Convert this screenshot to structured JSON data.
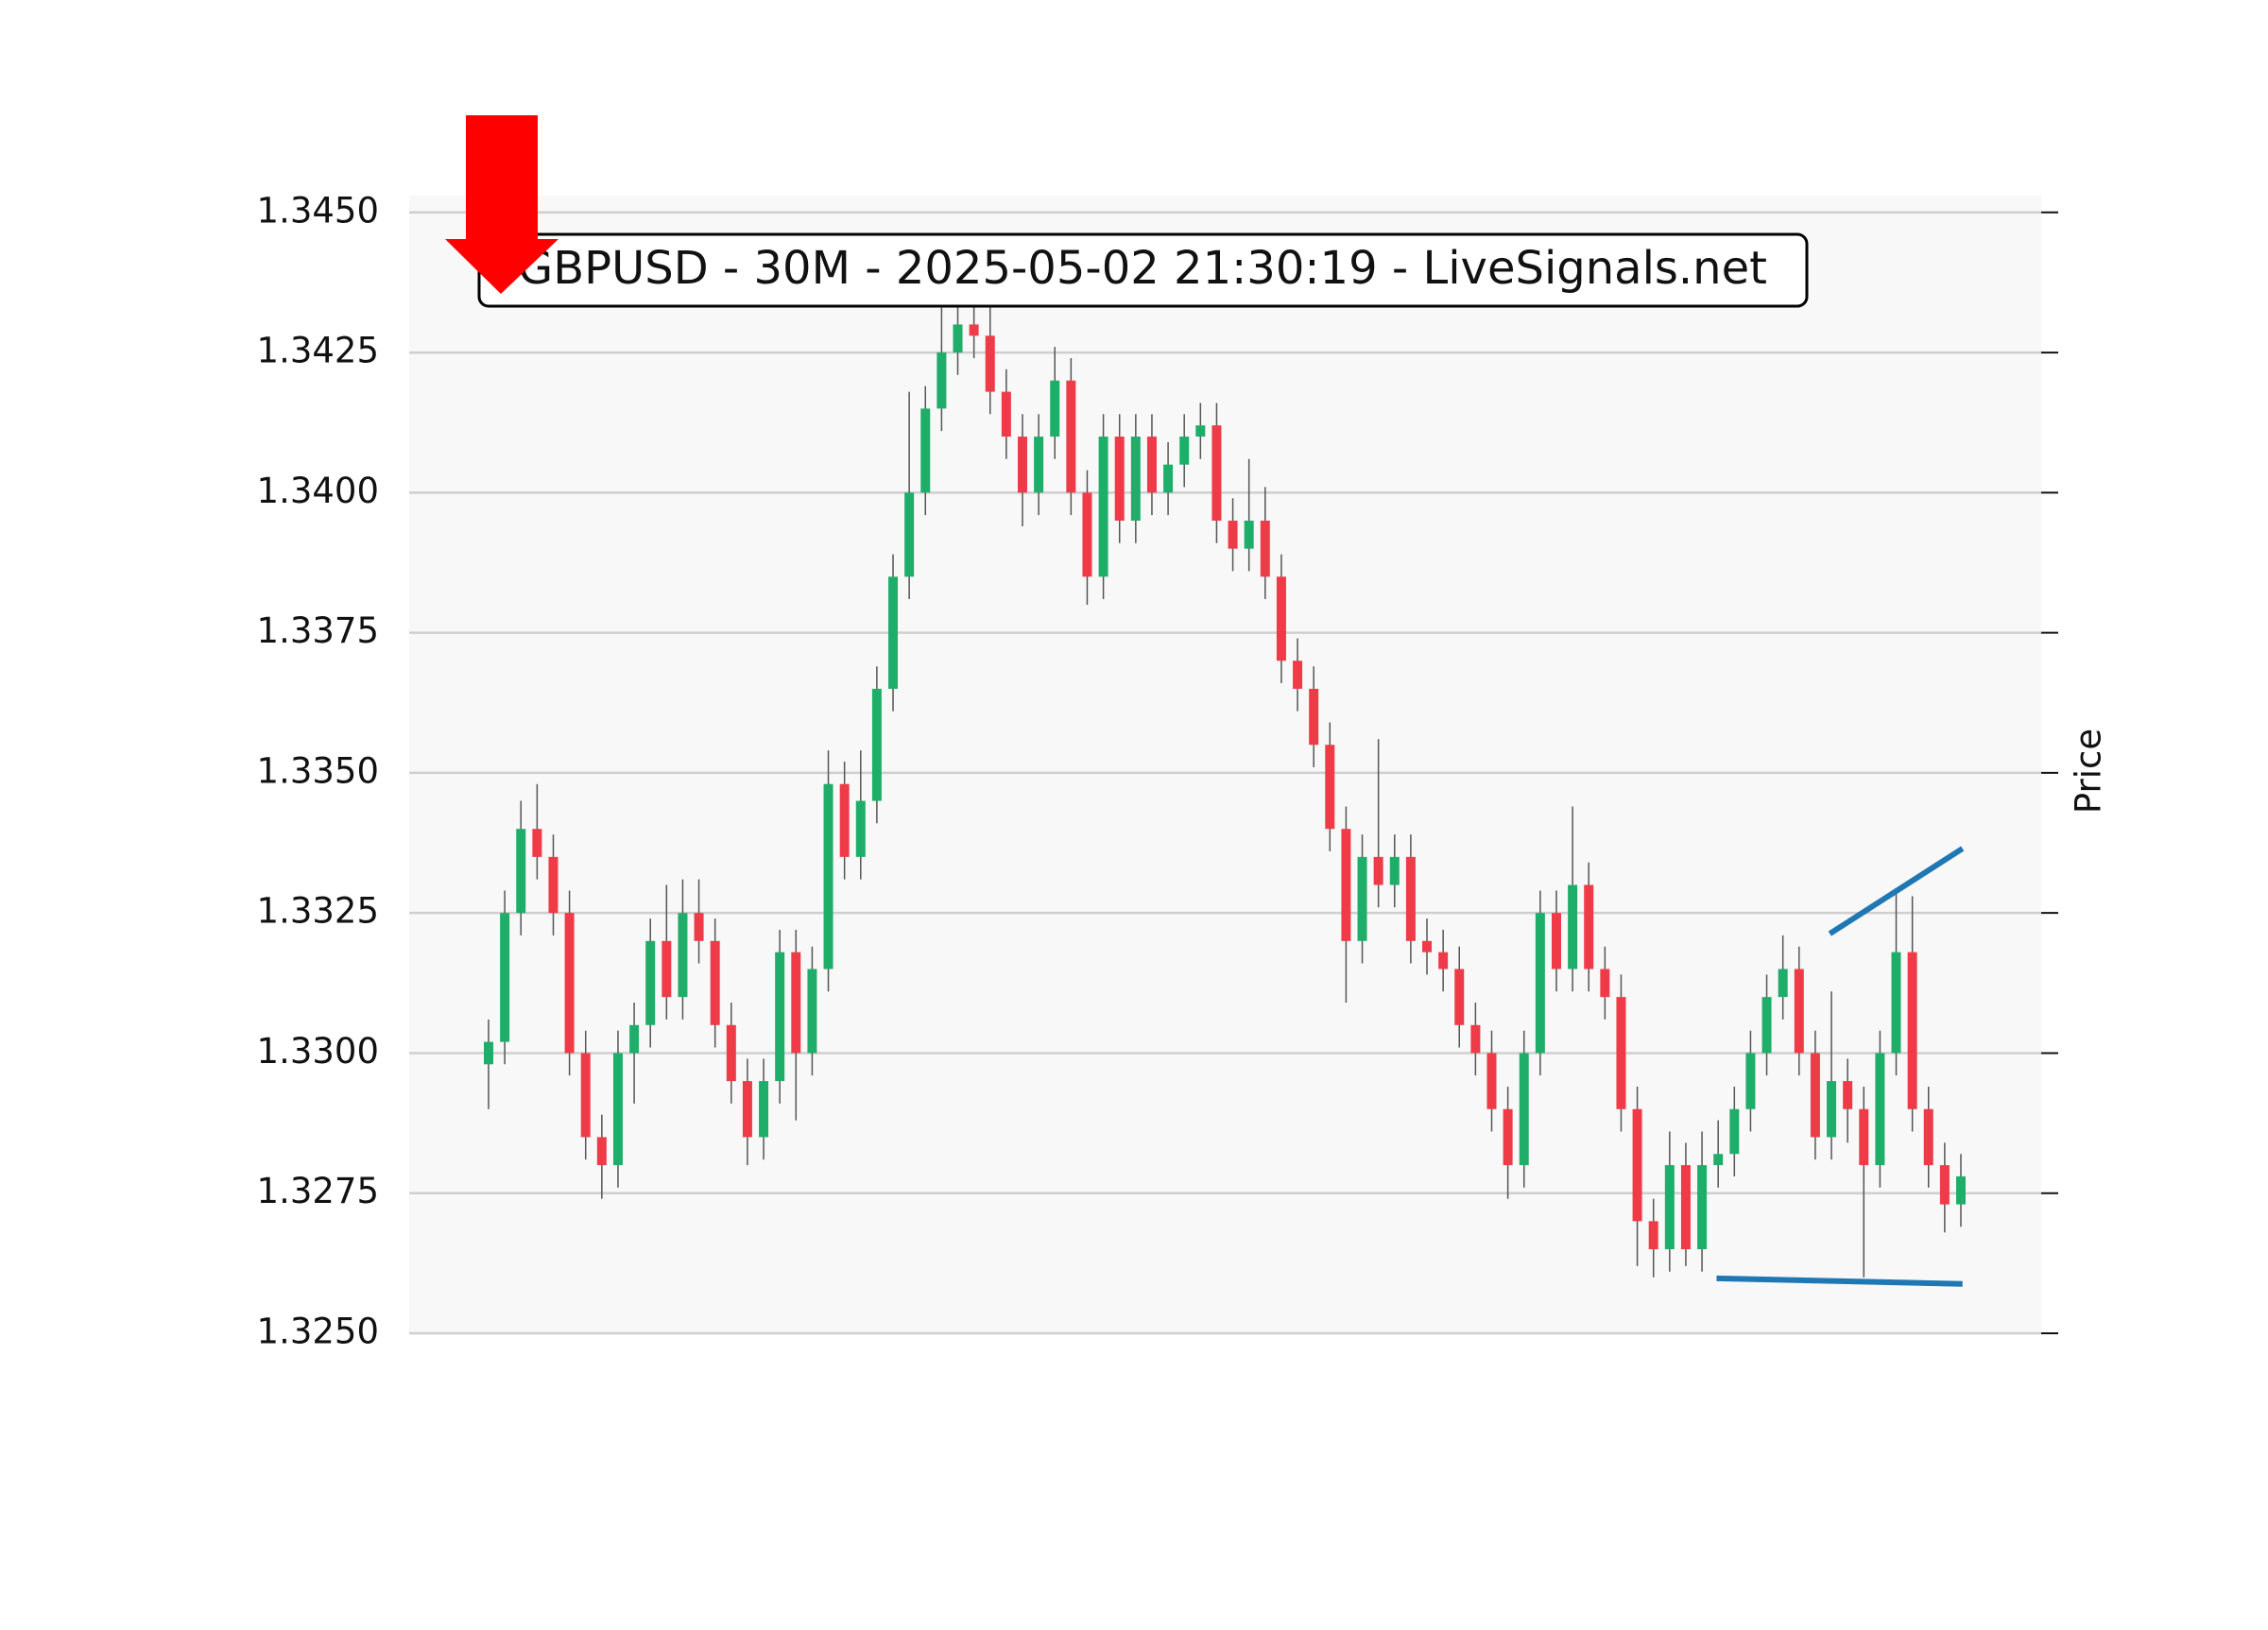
{
  "chart_data": {
    "type": "candlestick",
    "title": "GBPUSD - 30M - 2025-05-02 21:30:19 - LiveSignals.net",
    "ylabel": "Price",
    "ylim": [
      1.325,
      1.3453
    ],
    "yticks": [
      {
        "value": 1.325,
        "label": "1.3250"
      },
      {
        "value": 1.3275,
        "label": "1.3275"
      },
      {
        "value": 1.33,
        "label": "1.3300"
      },
      {
        "value": 1.3325,
        "label": "1.3325"
      },
      {
        "value": 1.335,
        "label": "1.3350"
      },
      {
        "value": 1.3375,
        "label": "1.3375"
      },
      {
        "value": 1.34,
        "label": "1.3400"
      },
      {
        "value": 1.3425,
        "label": "1.3425"
      },
      {
        "value": 1.345,
        "label": "1.3450"
      }
    ],
    "grid": true,
    "up_color": "#1fae6a",
    "down_color": "#ef3b47",
    "open": [
      1.3298,
      1.3302,
      1.3325,
      1.334,
      1.3335,
      1.3325,
      1.33,
      1.3285,
      1.328,
      1.33,
      1.3305,
      1.332,
      1.331,
      1.3325,
      1.332,
      1.3305,
      1.3295,
      1.3285,
      1.3295,
      1.3318,
      1.33,
      1.3315,
      1.3348,
      1.3335,
      1.3345,
      1.3365,
      1.3385,
      1.34,
      1.3415,
      1.3425,
      1.343,
      1.3428,
      1.3418,
      1.341,
      1.34,
      1.341,
      1.342,
      1.34,
      1.3385,
      1.341,
      1.3395,
      1.341,
      1.34,
      1.3405,
      1.341,
      1.3412,
      1.3395,
      1.339,
      1.3395,
      1.3385,
      1.337,
      1.3365,
      1.3355,
      1.334,
      1.332,
      1.3335,
      1.333,
      1.3335,
      1.332,
      1.3318,
      1.3315,
      1.3305,
      1.33,
      1.329,
      1.328,
      1.33,
      1.3325,
      1.3315,
      1.333,
      1.3315,
      1.331,
      1.329,
      1.327,
      1.3265,
      1.328,
      1.3265,
      1.328,
      1.3282,
      1.329,
      1.33,
      1.331,
      1.3315,
      1.33,
      1.3285,
      1.3295,
      1.329,
      1.328,
      1.33,
      1.3318,
      1.329,
      1.328,
      1.3273
    ],
    "high": [
      1.3306,
      1.3329,
      1.3345,
      1.3348,
      1.3339,
      1.3329,
      1.3304,
      1.3289,
      1.3304,
      1.3309,
      1.3324,
      1.333,
      1.3331,
      1.3331,
      1.3324,
      1.3309,
      1.3299,
      1.3299,
      1.3322,
      1.3322,
      1.3319,
      1.3354,
      1.3352,
      1.3354,
      1.3369,
      1.3389,
      1.3418,
      1.3419,
      1.3433,
      1.3436,
      1.3435,
      1.3434,
      1.3422,
      1.3414,
      1.3414,
      1.3426,
      1.3424,
      1.3404,
      1.3414,
      1.3414,
      1.3414,
      1.3414,
      1.3409,
      1.3414,
      1.3416,
      1.3416,
      1.3399,
      1.3406,
      1.3401,
      1.3389,
      1.3374,
      1.3369,
      1.3359,
      1.3344,
      1.3339,
      1.3356,
      1.3339,
      1.3339,
      1.3324,
      1.3322,
      1.3319,
      1.3309,
      1.3304,
      1.3294,
      1.3304,
      1.3329,
      1.3329,
      1.3344,
      1.3334,
      1.3319,
      1.3314,
      1.3294,
      1.3274,
      1.3286,
      1.3284,
      1.3286,
      1.3288,
      1.3294,
      1.3304,
      1.3314,
      1.3321,
      1.3319,
      1.3304,
      1.3311,
      1.3299,
      1.3294,
      1.3304,
      1.3329,
      1.3328,
      1.3294,
      1.3284,
      1.3282
    ],
    "low": [
      1.329,
      1.3298,
      1.3321,
      1.3331,
      1.3321,
      1.3296,
      1.3281,
      1.3274,
      1.3276,
      1.3291,
      1.3301,
      1.3306,
      1.3306,
      1.3316,
      1.3301,
      1.3291,
      1.328,
      1.3281,
      1.3291,
      1.3288,
      1.3296,
      1.3311,
      1.3331,
      1.3331,
      1.3341,
      1.3361,
      1.3381,
      1.3396,
      1.3411,
      1.3421,
      1.3424,
      1.3414,
      1.3406,
      1.3394,
      1.3396,
      1.3406,
      1.3396,
      1.338,
      1.3381,
      1.3391,
      1.3391,
      1.3396,
      1.3396,
      1.3401,
      1.3406,
      1.3391,
      1.3386,
      1.3386,
      1.3381,
      1.3366,
      1.3361,
      1.3351,
      1.3336,
      1.3309,
      1.3316,
      1.3326,
      1.3326,
      1.3316,
      1.3314,
      1.3311,
      1.3301,
      1.3296,
      1.3286,
      1.3274,
      1.3276,
      1.3296,
      1.3311,
      1.3311,
      1.3311,
      1.3306,
      1.3286,
      1.3262,
      1.326,
      1.3261,
      1.3262,
      1.3261,
      1.3276,
      1.3278,
      1.3286,
      1.3296,
      1.3306,
      1.3296,
      1.3281,
      1.3281,
      1.3284,
      1.326,
      1.3276,
      1.3296,
      1.3286,
      1.3276,
      1.3268,
      1.3269
    ],
    "close": [
      1.3302,
      1.3325,
      1.334,
      1.3335,
      1.3325,
      1.33,
      1.3285,
      1.328,
      1.33,
      1.3305,
      1.332,
      1.331,
      1.3325,
      1.332,
      1.3305,
      1.3295,
      1.3285,
      1.3295,
      1.3318,
      1.33,
      1.3315,
      1.3348,
      1.3335,
      1.3345,
      1.3365,
      1.3385,
      1.34,
      1.3415,
      1.3425,
      1.343,
      1.3428,
      1.3418,
      1.341,
      1.34,
      1.341,
      1.342,
      1.34,
      1.3385,
      1.341,
      1.3395,
      1.341,
      1.34,
      1.3405,
      1.341,
      1.3412,
      1.3395,
      1.339,
      1.3395,
      1.3385,
      1.337,
      1.3365,
      1.3355,
      1.334,
      1.332,
      1.3335,
      1.333,
      1.3335,
      1.332,
      1.3318,
      1.3315,
      1.3305,
      1.33,
      1.329,
      1.328,
      1.33,
      1.3325,
      1.3315,
      1.333,
      1.3315,
      1.331,
      1.329,
      1.327,
      1.3265,
      1.328,
      1.3265,
      1.328,
      1.3282,
      1.329,
      1.33,
      1.331,
      1.3315,
      1.33,
      1.3285,
      1.3295,
      1.329,
      1.328,
      1.33,
      1.3318,
      1.329,
      1.328,
      1.3273,
      1.3278
    ],
    "trendlines": [
      {
        "color": "#1f77b4",
        "x": [
          82.9,
          91.1
        ],
        "y": [
          1.33213,
          1.33365
        ]
      },
      {
        "color": "#1f77b4",
        "x": [
          75.9,
          91.1
        ],
        "y": [
          1.32598,
          1.32588
        ]
      }
    ]
  }
}
